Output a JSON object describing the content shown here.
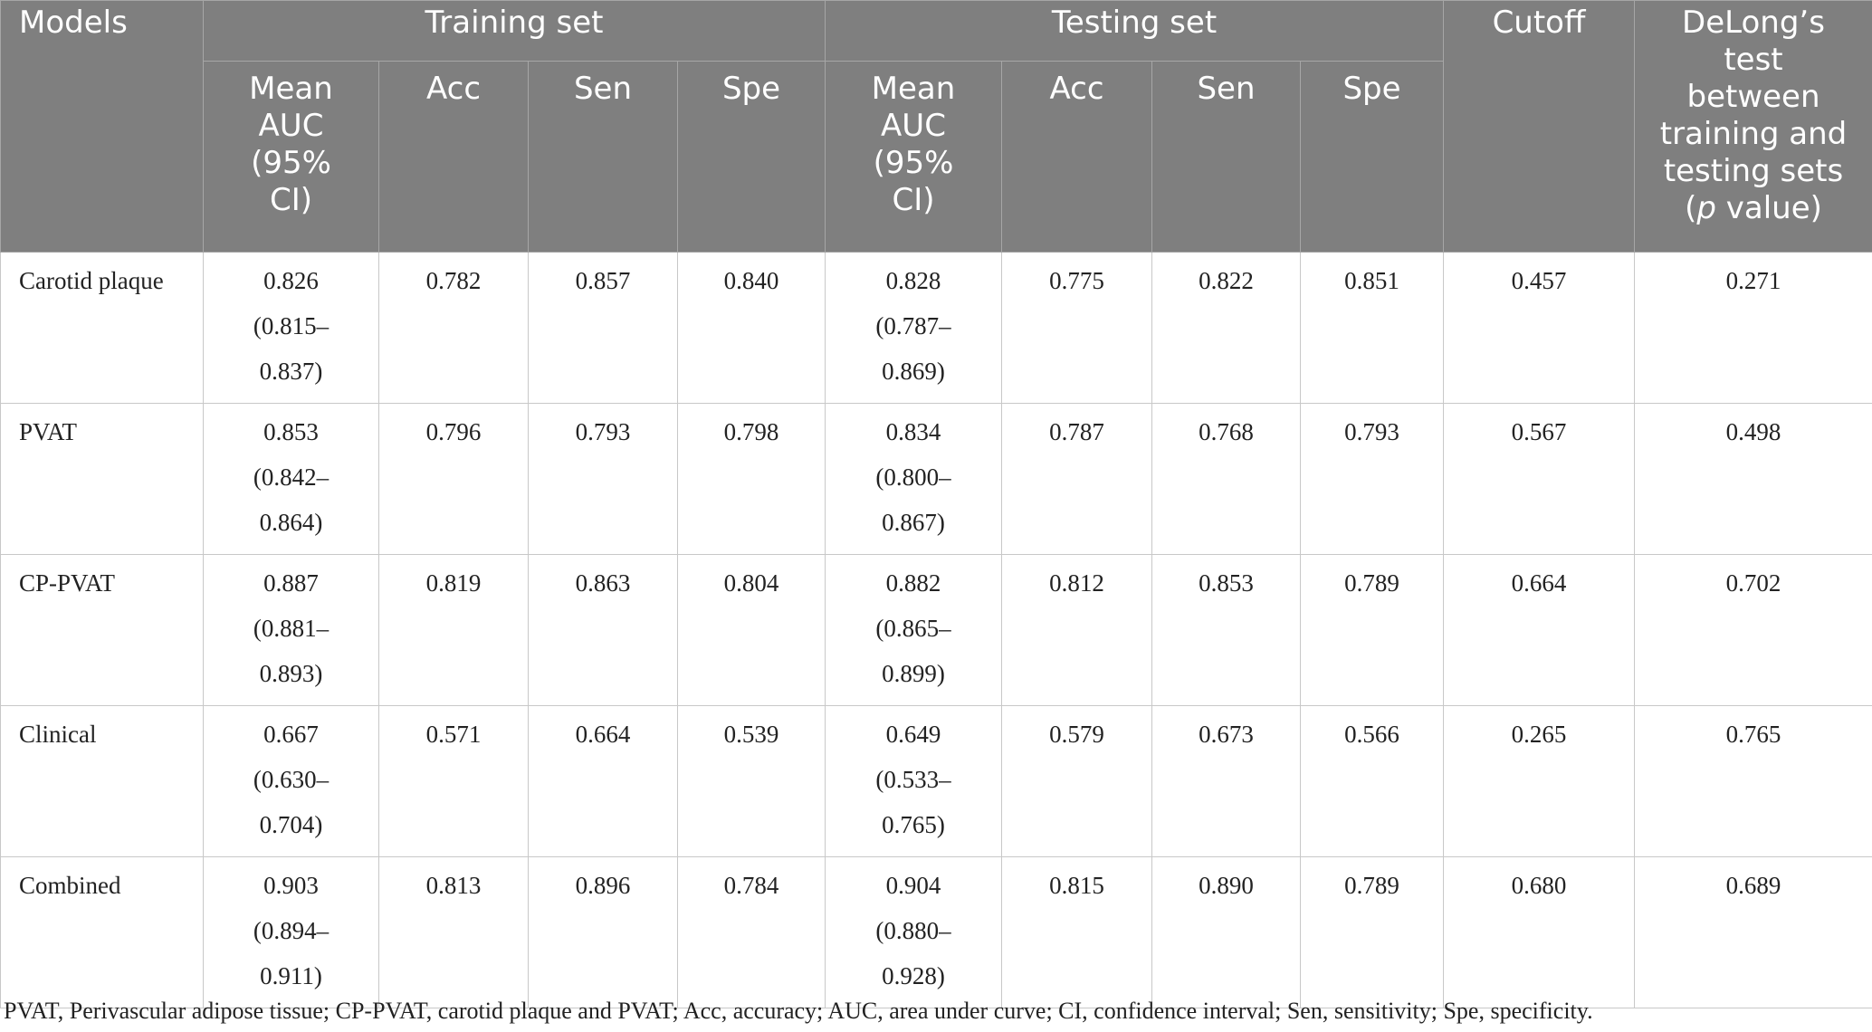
{
  "table": {
    "header": {
      "models": "Models",
      "training": "Training set",
      "testing": "Testing set",
      "cutoff": "Cutoff",
      "delong": [
        "DeLong’s test between training and testing sets (",
        "p",
        " value)"
      ],
      "training_sub": [
        "Mean AUC (95% CI)",
        "Acc",
        "Sen",
        "Spe"
      ],
      "testing_sub": [
        "Mean AUC (95% CI)",
        "Acc",
        "Sen",
        "Spe"
      ]
    },
    "rows": [
      [
        "Carotid plaque",
        [
          "0.826",
          "(0.815–0.837)"
        ],
        "0.782",
        "0.857",
        "0.840",
        [
          "0.828",
          "(0.787–0.869)"
        ],
        "0.775",
        "0.822",
        "0.851",
        "0.457",
        "0.271"
      ],
      [
        "PVAT",
        [
          "0.853",
          "(0.842–0.864)"
        ],
        "0.796",
        "0.793",
        "0.798",
        [
          "0.834",
          "(0.800–0.867)"
        ],
        "0.787",
        "0.768",
        "0.793",
        "0.567",
        "0.498"
      ],
      [
        "CP-PVAT",
        [
          "0.887",
          "(0.881–0.893)"
        ],
        "0.819",
        "0.863",
        "0.804",
        [
          "0.882",
          "(0.865–0.899)"
        ],
        "0.812",
        "0.853",
        "0.789",
        "0.664",
        "0.702"
      ],
      [
        "Clinical",
        [
          "0.667",
          "(0.630–0.704)"
        ],
        "0.571",
        "0.664",
        "0.539",
        [
          "0.649",
          "(0.533–0.765)"
        ],
        "0.579",
        "0.673",
        "0.566",
        "0.265",
        "0.765"
      ],
      [
        "Combined",
        [
          "0.903",
          "(0.894–0.911)"
        ],
        "0.813",
        "0.896",
        "0.784",
        [
          "0.904",
          "(0.880–0.928)"
        ],
        "0.815",
        "0.890",
        "0.789",
        "0.680",
        "0.689"
      ]
    ],
    "footnote": "PVAT, Perivascular adipose tissue; CP-PVAT, carotid plaque and PVAT; Acc, accuracy; AUC, area under curve; CI, confidence interval; Sen, sensitivity; Spe, specificity."
  }
}
